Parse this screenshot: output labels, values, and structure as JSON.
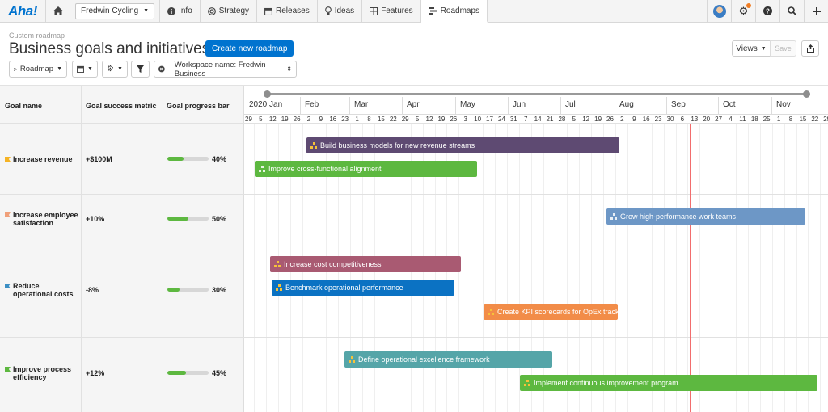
{
  "app": {
    "logo": "Aha!"
  },
  "nav": {
    "workspace": "Fredwin Cycling",
    "tabs": [
      {
        "label": "Info",
        "icon": "info-icon"
      },
      {
        "label": "Strategy",
        "icon": "target-icon"
      },
      {
        "label": "Releases",
        "icon": "calendar-icon"
      },
      {
        "label": "Ideas",
        "icon": "lightbulb-icon"
      },
      {
        "label": "Features",
        "icon": "grid-icon"
      },
      {
        "label": "Roadmaps",
        "icon": "roadmap-icon",
        "active": true
      }
    ]
  },
  "header": {
    "breadcrumb": "Custom roadmap",
    "title": "Business goals and initiatives",
    "create_button": "Create new roadmap",
    "views_button": "Views",
    "save_button": "Save"
  },
  "toolbar": {
    "view_select": "Roadmap",
    "filter_label": "Workspace name: Fredwin Business"
  },
  "table": {
    "columns": [
      "Goal name",
      "Goal success metric",
      "Goal progress bar"
    ],
    "rows": [
      {
        "name": "Increase revenue",
        "flag_color": "#f5b324",
        "metric": "+$100M",
        "progress": 40,
        "progress_label": "40%"
      },
      {
        "name": "Increase employee satisfaction",
        "flag_color": "#f0a07a",
        "metric": "+10%",
        "progress": 50,
        "progress_label": "50%"
      },
      {
        "name": "Reduce operational costs",
        "flag_color": "#3c8fc4",
        "metric": "-8%",
        "progress": 30,
        "progress_label": "30%"
      },
      {
        "name": "Improve process efficiency",
        "flag_color": "#5db840",
        "metric": "+12%",
        "progress": 45,
        "progress_label": "45%"
      }
    ]
  },
  "timeline": {
    "months": [
      "2020 Jan",
      "Feb",
      "Mar",
      "Apr",
      "May",
      "Jun",
      "Jul",
      "Aug",
      "Sep",
      "Oct",
      "Nov"
    ],
    "days": [
      "29",
      "5",
      "12",
      "19",
      "26",
      "2",
      "9",
      "16",
      "23",
      "1",
      "8",
      "15",
      "22",
      "29",
      "5",
      "12",
      "19",
      "26",
      "3",
      "10",
      "17",
      "24",
      "31",
      "7",
      "14",
      "21",
      "28",
      "5",
      "12",
      "19",
      "26",
      "2",
      "9",
      "16",
      "23",
      "30",
      "6",
      "13",
      "20",
      "27",
      "4",
      "11",
      "18",
      "25",
      "1",
      "8",
      "15",
      "22",
      "29"
    ]
  },
  "initiatives": [
    {
      "label": "Build business models for new revenue streams",
      "color": "#5e4a72",
      "icon": "gold"
    },
    {
      "label": "Improve cross-functional alignment",
      "color": "#5db840",
      "icon": "white"
    },
    {
      "label": "Grow high-performance work teams",
      "color": "#6d97c6",
      "icon": "white"
    },
    {
      "label": "Increase cost competitiveness",
      "color": "#a95a72",
      "icon": "gold"
    },
    {
      "label": "Benchmark operational performance",
      "color": "#0b72c3",
      "icon": "gold"
    },
    {
      "label": "Create KPI scorecards for OpEx tracking",
      "color": "#f28c48",
      "icon": "gold"
    },
    {
      "label": "Define operational excellence framework",
      "color": "#55a5a8",
      "icon": "gold"
    },
    {
      "label": "Implement continuous improvement program",
      "color": "#5db840",
      "icon": "gold"
    }
  ]
}
